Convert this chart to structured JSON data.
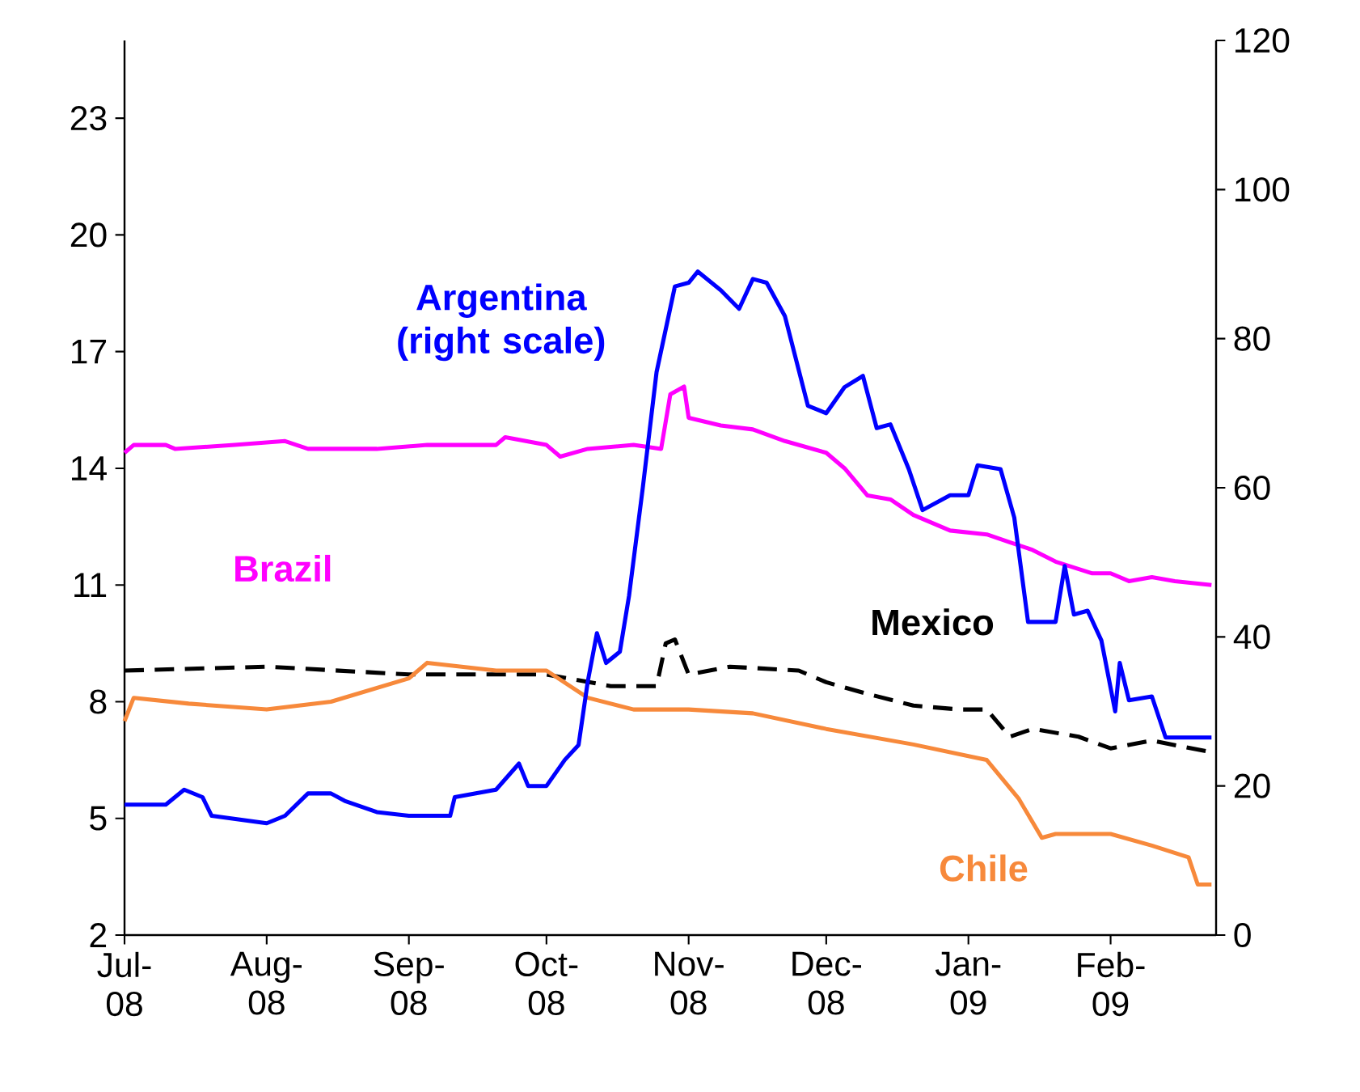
{
  "chart_data": {
    "type": "line",
    "marker": "none",
    "xlim": [
      "2008-07-01",
      "2009-02-24"
    ],
    "xticks": [
      {
        "value": "2008-07-01",
        "label": "Jul- 08"
      },
      {
        "value": "2008-08-01",
        "label": "Aug- 08"
      },
      {
        "value": "2008-09-01",
        "label": "Sep- 08"
      },
      {
        "value": "2008-10-01",
        "label": "Oct- 08"
      },
      {
        "value": "2008-11-01",
        "label": "Nov- 08"
      },
      {
        "value": "2008-12-01",
        "label": "Dec- 08"
      },
      {
        "value": "2009-01-01",
        "label": "Jan- 09"
      },
      {
        "value": "2009-02-01",
        "label": "Feb- 09"
      }
    ],
    "ylim": [
      2,
      25
    ],
    "yticks": [
      2,
      5,
      8,
      11,
      14,
      17,
      20,
      23
    ],
    "y2lim": [
      0,
      120
    ],
    "y2ticks": [
      0,
      20,
      40,
      60,
      80,
      100,
      120
    ],
    "series": [
      {
        "name": "Argentina (right scale)",
        "color": "#0000ff",
        "axis": "y2",
        "x": [
          "2008-07-01",
          "2008-07-10",
          "2008-07-14",
          "2008-07-18",
          "2008-07-20",
          "2008-08-01",
          "2008-08-05",
          "2008-08-10",
          "2008-08-15",
          "2008-08-18",
          "2008-08-25",
          "2008-09-01",
          "2008-09-10",
          "2008-09-11",
          "2008-09-20",
          "2008-09-25",
          "2008-09-27",
          "2008-10-01",
          "2008-10-05",
          "2008-10-08",
          "2008-10-10",
          "2008-10-12",
          "2008-10-14",
          "2008-10-17",
          "2008-10-19",
          "2008-10-22",
          "2008-10-25",
          "2008-10-29",
          "2008-11-01",
          "2008-11-03",
          "2008-11-08",
          "2008-11-12",
          "2008-11-15",
          "2008-11-18",
          "2008-11-22",
          "2008-11-27",
          "2008-12-01",
          "2008-12-05",
          "2008-12-09",
          "2008-12-12",
          "2008-12-15",
          "2008-12-19",
          "2008-12-22",
          "2008-12-28",
          "2009-01-01",
          "2009-01-03",
          "2009-01-08",
          "2009-01-11",
          "2009-01-14",
          "2009-01-20",
          "2009-01-22",
          "2009-01-24",
          "2009-01-27",
          "2009-01-30",
          "2009-02-02",
          "2009-02-03",
          "2009-02-05",
          "2009-02-10",
          "2009-02-13",
          "2009-02-23"
        ],
        "values": [
          17.5,
          17.5,
          19.5,
          18.5,
          16,
          15,
          16,
          19,
          19,
          18,
          16.5,
          16,
          16,
          18.5,
          19.5,
          23,
          20,
          20,
          23.5,
          25.5,
          34,
          40.5,
          36.5,
          38,
          45.5,
          60,
          75.5,
          87,
          87.5,
          89,
          86.5,
          84,
          88,
          87.5,
          83,
          71,
          70,
          73.5,
          75,
          68,
          68.5,
          62.5,
          57,
          59,
          59,
          63,
          62.5,
          56,
          42,
          42,
          49.5,
          43,
          43.5,
          39.5,
          30,
          36.5,
          31.5,
          32,
          26.5,
          26.5
        ]
      },
      {
        "name": "Brazil",
        "color": "#ff00ff",
        "x": [
          "2008-07-01",
          "2008-07-03",
          "2008-07-10",
          "2008-07-12",
          "2008-07-25",
          "2008-08-05",
          "2008-08-10",
          "2008-08-25",
          "2008-09-05",
          "2008-09-20",
          "2008-09-22",
          "2008-10-01",
          "2008-10-04",
          "2008-10-10",
          "2008-10-20",
          "2008-10-26",
          "2008-10-28",
          "2008-10-31",
          "2008-11-01",
          "2008-11-08",
          "2008-11-15",
          "2008-11-22",
          "2008-12-01",
          "2008-12-05",
          "2008-12-10",
          "2008-12-15",
          "2008-12-20",
          "2008-12-28",
          "2009-01-05",
          "2009-01-10",
          "2009-01-15",
          "2009-01-20",
          "2009-01-28",
          "2009-02-01",
          "2009-02-05",
          "2009-02-10",
          "2009-02-15",
          "2009-02-23"
        ],
        "values": [
          14.4,
          14.6,
          14.6,
          14.5,
          14.6,
          14.7,
          14.5,
          14.5,
          14.6,
          14.6,
          14.8,
          14.6,
          14.3,
          14.5,
          14.6,
          14.5,
          15.9,
          16.1,
          15.3,
          15.1,
          15.0,
          14.7,
          14.4,
          14.0,
          13.3,
          13.2,
          12.8,
          12.4,
          12.3,
          12.1,
          11.9,
          11.6,
          11.3,
          11.3,
          11.1,
          11.2,
          11.1,
          11.0
        ]
      },
      {
        "name": "Mexico",
        "color": "#000000",
        "line_style": "dashed",
        "x": [
          "2008-07-01",
          "2008-08-01",
          "2008-09-01",
          "2008-10-01",
          "2008-10-15",
          "2008-10-25",
          "2008-10-27",
          "2008-10-29",
          "2008-11-01",
          "2008-11-10",
          "2008-11-25",
          "2008-12-01",
          "2008-12-10",
          "2008-12-20",
          "2008-12-30",
          "2009-01-05",
          "2009-01-10",
          "2009-01-15",
          "2009-01-25",
          "2009-02-01",
          "2009-02-10",
          "2009-02-23"
        ],
        "values": [
          8.8,
          8.9,
          8.7,
          8.7,
          8.4,
          8.4,
          9.5,
          9.6,
          8.7,
          8.9,
          8.8,
          8.5,
          8.2,
          7.9,
          7.8,
          7.8,
          7.1,
          7.3,
          7.1,
          6.8,
          7.0,
          6.7
        ]
      },
      {
        "name": "Chile",
        "color": "#f7893b",
        "x": [
          "2008-07-01",
          "2008-07-03",
          "2008-07-15",
          "2008-08-01",
          "2008-08-15",
          "2008-09-01",
          "2008-09-05",
          "2008-09-20",
          "2008-10-01",
          "2008-10-10",
          "2008-10-20",
          "2008-11-01",
          "2008-11-15",
          "2008-12-01",
          "2008-12-20",
          "2009-01-01",
          "2009-01-05",
          "2009-01-12",
          "2009-01-17",
          "2009-01-20",
          "2009-02-01",
          "2009-02-10",
          "2009-02-18",
          "2009-02-20",
          "2009-02-23"
        ],
        "values": [
          7.5,
          8.1,
          7.95,
          7.8,
          8.0,
          8.6,
          9.0,
          8.8,
          8.8,
          8.1,
          7.8,
          7.8,
          7.7,
          7.3,
          6.9,
          6.6,
          6.5,
          5.5,
          4.5,
          4.6,
          4.6,
          4.3,
          4.0,
          3.3,
          3.3
        ]
      }
    ]
  }
}
